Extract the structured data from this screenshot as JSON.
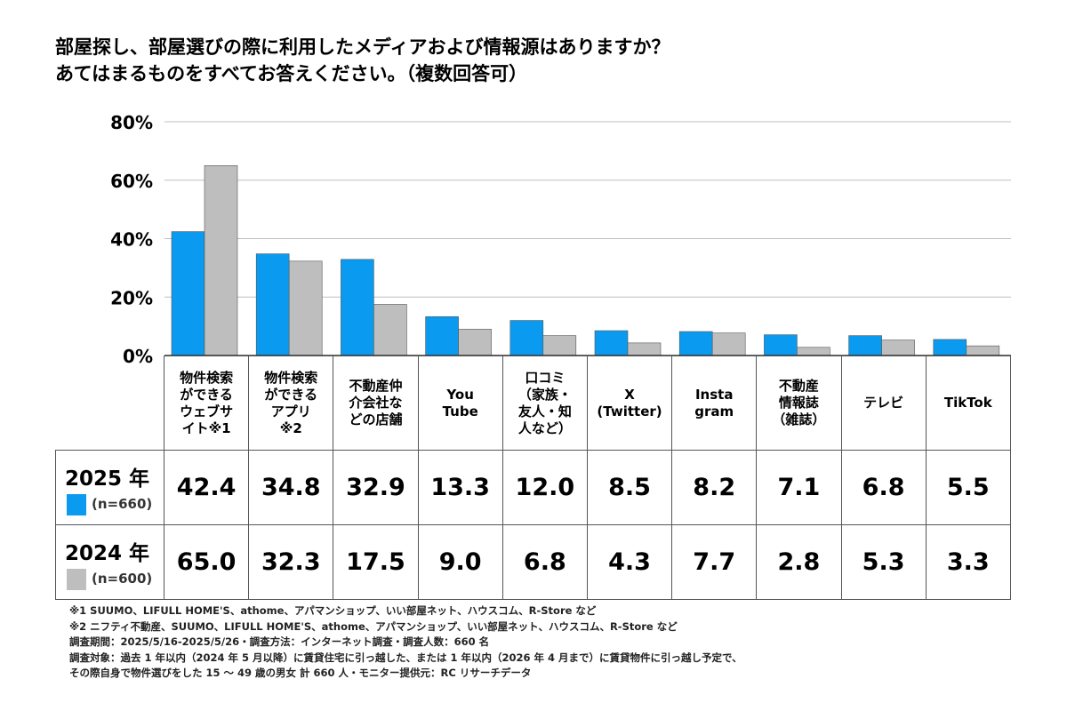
{
  "title": {
    "line1": "部屋探し、部屋選びの際に利用したメディアおよび情報源はありますか？",
    "line2": "あてはまるものをすべてお答えください。（複数回答可）"
  },
  "colors": {
    "series_2025": "#0a9bf0",
    "series_2024": "#bebebe",
    "grid": "#bfbfbf",
    "axis": "#333333"
  },
  "chart_data": {
    "type": "bar",
    "ylim": [
      0,
      80
    ],
    "yticks": [
      "0%",
      "20%",
      "40%",
      "60%",
      "80%"
    ],
    "grid": true,
    "categories": [
      "物件検索\nができる\nウェブサ\nイト※1",
      "物件検索\nができる\nアプリ\n※2",
      "不動産仲\n介会社な\nどの店舗",
      "You\nTube",
      "口コミ\n（家族・\n友人・知\n人など）",
      "X\n(Twitter)",
      "Insta\ngram",
      "不動産\n情報誌\n（雑誌）",
      "テレビ",
      "TikTok"
    ],
    "series": [
      {
        "name": "2025 年",
        "n": "(n=660)",
        "values": [
          42.4,
          34.8,
          32.9,
          13.3,
          12.0,
          8.5,
          8.2,
          7.1,
          6.8,
          5.5
        ],
        "labels": [
          "42.4",
          "34.8",
          "32.9",
          "13.3",
          "12.0",
          "8.5",
          "8.2",
          "7.1",
          "6.8",
          "5.5"
        ]
      },
      {
        "name": "2024 年",
        "n": "(n=600)",
        "values": [
          65.0,
          32.3,
          17.5,
          9.0,
          6.8,
          4.3,
          7.7,
          2.8,
          5.3,
          3.3
        ],
        "labels": [
          "65.0",
          "32.3",
          "17.5",
          "9.0",
          "6.8",
          "4.3",
          "7.7",
          "2.8",
          "5.3",
          "3.3"
        ]
      }
    ]
  },
  "footnotes": [
    "※1 SUUMO、LIFULL HOME'S、athome、アパマンショップ、いい部屋ネット、ハウスコム、R-Store など",
    "※2 ニフティ不動産、SUUMO、LIFULL HOME'S、athome、アパマンショップ、いい部屋ネット、ハウスコム、R-Store など",
    "調査期間：2025/5/16-2025/5/26・調査方法：インターネット調査・調査人数：660 名",
    "調査対象：過去 1 年以内（2024 年 5 月以降）に賃貸住宅に引っ越した、または 1 年以内（2026 年 4 月まで）に賃貸物件に引っ越し予定で、",
    "その際自身で物件選びをした 15 ～ 49 歳の男女 計 660 人・モニター提供元：RC リサーチデータ"
  ]
}
